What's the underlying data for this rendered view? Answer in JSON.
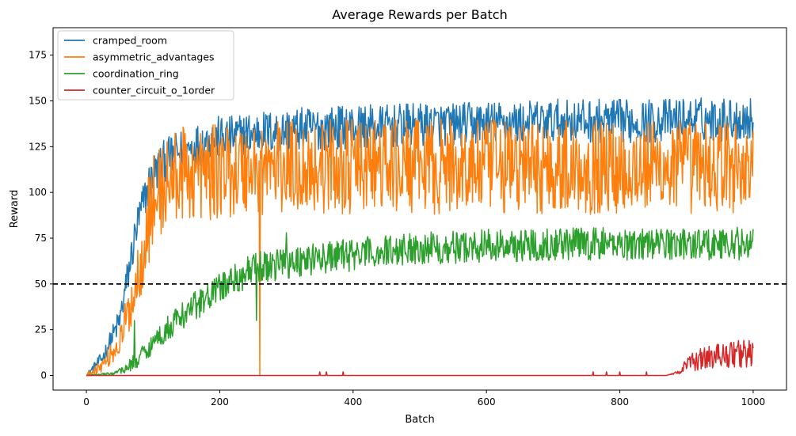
{
  "chart_data": {
    "type": "line",
    "title": "Average Rewards per Batch",
    "xlabel": "Batch",
    "ylabel": "Reward",
    "xlim": [
      -50,
      1050
    ],
    "ylim": [
      -8,
      190
    ],
    "x_ticks": [
      0,
      200,
      400,
      600,
      800,
      1000
    ],
    "y_ticks": [
      0,
      25,
      50,
      75,
      100,
      125,
      150,
      175
    ],
    "grid": false,
    "legend_position": "top-left",
    "hline": {
      "y": 50,
      "style": "dashed",
      "color": "#000000"
    },
    "series": [
      {
        "name": "cramped_room",
        "color": "#1f77b4",
        "x": [
          0,
          25,
          50,
          60,
          75,
          90,
          100,
          120,
          140,
          160,
          180,
          200,
          220,
          240,
          260,
          280,
          300,
          350,
          400,
          450,
          500,
          550,
          600,
          650,
          700,
          750,
          800,
          850,
          900,
          950,
          1000
        ],
        "y": [
          0,
          10,
          30,
          50,
          80,
          100,
          110,
          118,
          122,
          125,
          128,
          130,
          130,
          132,
          133,
          133,
          134,
          135,
          136,
          136,
          137,
          137,
          138,
          138,
          139,
          139,
          139,
          139,
          140,
          140,
          140
        ],
        "noise": [
          1,
          4,
          8,
          10,
          12,
          12,
          12,
          12,
          12,
          12,
          12,
          12,
          12,
          12,
          12,
          12,
          12,
          12,
          12,
          12,
          12,
          12,
          12,
          12,
          12,
          12,
          12,
          12,
          12,
          12,
          12
        ]
      },
      {
        "name": "asymmetric_advantages",
        "color": "#ff7f0e",
        "x": [
          0,
          25,
          50,
          75,
          90,
          100,
          120,
          140,
          160,
          180,
          200,
          250,
          300,
          350,
          400,
          450,
          500,
          550,
          600,
          650,
          700,
          750,
          800,
          850,
          900,
          950,
          1000
        ],
        "y": [
          0,
          6,
          18,
          50,
          80,
          95,
          105,
          110,
          110,
          110,
          112,
          113,
          114,
          114,
          114,
          114,
          114,
          114,
          114,
          114,
          114,
          114,
          114,
          114,
          114,
          114,
          114
        ],
        "noise": [
          1,
          4,
          8,
          18,
          24,
          26,
          26,
          26,
          26,
          26,
          26,
          26,
          26,
          26,
          26,
          26,
          26,
          26,
          26,
          26,
          26,
          26,
          26,
          26,
          26,
          26,
          26
        ]
      },
      {
        "name": "coordination_ring",
        "color": "#2ca02c",
        "x": [
          0,
          40,
          60,
          80,
          100,
          120,
          150,
          180,
          200,
          250,
          300,
          350,
          400,
          450,
          500,
          550,
          600,
          650,
          700,
          750,
          800,
          850,
          900,
          950,
          1000
        ],
        "y": [
          0,
          1,
          4,
          10,
          18,
          25,
          35,
          42,
          48,
          58,
          62,
          64,
          66,
          68,
          70,
          70,
          71,
          71,
          72,
          72,
          72,
          72,
          72,
          72,
          72
        ],
        "noise": [
          0,
          1,
          3,
          5,
          6,
          7,
          8,
          8,
          8,
          9,
          9,
          9,
          9,
          9,
          9,
          9,
          9,
          9,
          9,
          9,
          9,
          9,
          9,
          9,
          9
        ],
        "events": [
          {
            "x": 72,
            "y": 30
          },
          {
            "x": 255,
            "y": 30
          },
          {
            "x": 300,
            "y": 78
          }
        ]
      },
      {
        "name": "counter_circuit_o_1order",
        "color": "#d62728",
        "x": [
          0,
          850,
          870,
          890,
          900,
          920,
          950,
          980,
          1000
        ],
        "y": [
          0,
          0,
          0,
          2,
          6,
          9,
          11,
          12,
          12
        ],
        "noise": [
          0,
          0,
          0,
          1,
          4,
          6,
          7,
          8,
          8
        ],
        "spikes": [
          {
            "x": 350,
            "y": 2
          },
          {
            "x": 360,
            "y": 2
          },
          {
            "x": 385,
            "y": 2
          },
          {
            "x": 760,
            "y": 2
          },
          {
            "x": 780,
            "y": 2
          },
          {
            "x": 800,
            "y": 2
          },
          {
            "x": 840,
            "y": 2
          }
        ]
      }
    ]
  }
}
